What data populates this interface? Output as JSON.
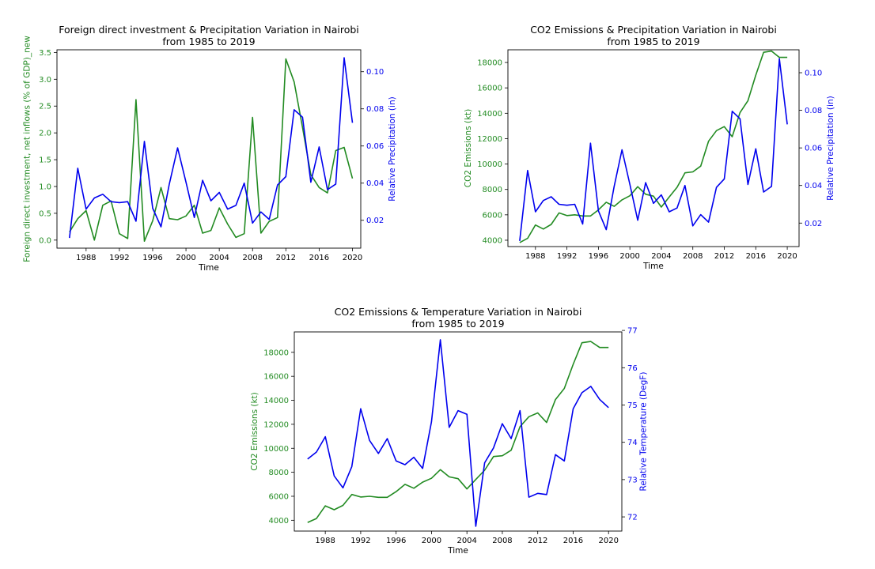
{
  "chart_data": [
    {
      "type": "line",
      "title": "Foreign direct investment & Precipitation Variation in Nairobi\nfrom 1985 to 2019",
      "xlabel": "Time",
      "ylabel_left": "Foreign direct investment, net inflows (% of GDP)_new",
      "ylabel_right": "Relative Precipitation (in)",
      "xlim": [
        1984.5,
        2021.0
      ],
      "ylim_left": [
        -0.15,
        3.55
      ],
      "ylim_right": [
        0.005,
        0.1118
      ],
      "xticks": [
        1988,
        1992,
        1996,
        2000,
        2004,
        2008,
        2012,
        2016,
        2020
      ],
      "xtick_labels": [
        "1988",
        "1992",
        "1996",
        "2000",
        "2004",
        "2008",
        "2012",
        "2016",
        "2020"
      ],
      "yticks_left": [
        0.0,
        0.5,
        1.0,
        1.5,
        2.0,
        2.5,
        3.0,
        3.5
      ],
      "ytick_labels_left": [
        "0.0",
        "0.5",
        "1.0",
        "1.5",
        "2.0",
        "2.5",
        "3.0",
        "3.5"
      ],
      "yticks_right": [
        0.02,
        0.04,
        0.06,
        0.08,
        0.1
      ],
      "ytick_labels_right": [
        "0.02",
        "0.04",
        "0.06",
        "0.08",
        "0.10"
      ],
      "series": [
        {
          "axis": "left",
          "color": "#228B22",
          "x": [
            1986,
            1987,
            1988,
            1989,
            1990,
            1991,
            1992,
            1993,
            1994,
            1995,
            1996,
            1997,
            1998,
            1999,
            2000,
            2001,
            2002,
            2003,
            2004,
            2005,
            2006,
            2007,
            2008,
            2009,
            2010,
            2011,
            2012,
            2013,
            2014,
            2015,
            2016,
            2017,
            2018,
            2019,
            2020
          ],
          "values": [
            0.15,
            0.4,
            0.55,
            0.0,
            0.65,
            0.73,
            0.12,
            0.03,
            2.62,
            -0.02,
            0.36,
            0.98,
            0.4,
            0.38,
            0.45,
            0.65,
            0.13,
            0.18,
            0.6,
            0.3,
            0.05,
            0.12,
            2.29,
            0.13,
            0.35,
            0.42,
            3.38,
            2.95,
            2.1,
            1.22,
            0.98,
            0.88,
            1.67,
            1.73,
            1.15
          ]
        },
        {
          "axis": "right",
          "color": "#0000EE",
          "x": [
            1986,
            1987,
            1988,
            1989,
            1990,
            1991,
            1992,
            1993,
            1994,
            1995,
            1996,
            1997,
            1998,
            1999,
            2000,
            2001,
            2002,
            2003,
            2004,
            2005,
            2006,
            2007,
            2008,
            2009,
            2010,
            2011,
            2012,
            2013,
            2014,
            2015,
            2016,
            2017,
            2018,
            2019,
            2020
          ],
          "values": [
            0.0105,
            0.048,
            0.026,
            0.032,
            0.034,
            0.03,
            0.0295,
            0.03,
            0.0195,
            0.0625,
            0.0265,
            0.0165,
            0.0395,
            0.059,
            0.0405,
            0.0215,
            0.0415,
            0.0305,
            0.035,
            0.026,
            0.028,
            0.04,
            0.0185,
            0.0245,
            0.0205,
            0.039,
            0.0435,
            0.0795,
            0.0755,
            0.0405,
            0.0595,
            0.0365,
            0.0395,
            0.1075,
            0.0725
          ]
        }
      ]
    },
    {
      "type": "line",
      "title": "CO2 Emissions & Precipitation Variation in Nairobi\nfrom 1985 to 2019",
      "xlabel": "Time",
      "ylabel_left": "CO2 Emissions (kt)",
      "ylabel_right": "Relative Precipitation (in)",
      "xlim": [
        1984.5,
        2021.5
      ],
      "ylim_left": [
        3500,
        19000
      ],
      "ylim_right": [
        0.0075,
        0.1122
      ],
      "xticks": [
        1988,
        1992,
        1996,
        2000,
        2004,
        2008,
        2012,
        2016,
        2020
      ],
      "xtick_labels": [
        "1988",
        "1992",
        "1996",
        "2000",
        "2004",
        "2008",
        "2012",
        "2016",
        "2020"
      ],
      "yticks_left": [
        4000,
        6000,
        8000,
        10000,
        12000,
        14000,
        16000,
        18000
      ],
      "ytick_labels_left": [
        "4000",
        "6000",
        "8000",
        "10000",
        "12000",
        "14000",
        "16000",
        "18000"
      ],
      "yticks_right": [
        0.02,
        0.04,
        0.06,
        0.08,
        0.1
      ],
      "ytick_labels_right": [
        "0.02",
        "0.04",
        "0.06",
        "0.08",
        "0.10"
      ],
      "series": [
        {
          "axis": "left",
          "color": "#228B22",
          "x": [
            1986,
            1987,
            1988,
            1989,
            1990,
            1991,
            1992,
            1993,
            1994,
            1995,
            1996,
            1997,
            1998,
            1999,
            2000,
            2001,
            2002,
            2003,
            2004,
            2005,
            2006,
            2007,
            2008,
            2009,
            2010,
            2011,
            2012,
            2013,
            2014,
            2015,
            2016,
            2017,
            2018,
            2019,
            2020
          ],
          "values": [
            3820,
            4150,
            5200,
            4880,
            5240,
            6150,
            5940,
            6000,
            5910,
            5910,
            6390,
            6990,
            6670,
            7180,
            7500,
            8220,
            7620,
            7470,
            6610,
            7400,
            8170,
            9310,
            9380,
            9840,
            11800,
            12630,
            12950,
            12150,
            14060,
            14990,
            17000,
            18800,
            18900,
            18400,
            18400
          ]
        },
        {
          "axis": "right",
          "color": "#0000EE",
          "x": [
            1986,
            1987,
            1988,
            1989,
            1990,
            1991,
            1992,
            1993,
            1994,
            1995,
            1996,
            1997,
            1998,
            1999,
            2000,
            2001,
            2002,
            2003,
            2004,
            2005,
            2006,
            2007,
            2008,
            2009,
            2010,
            2011,
            2012,
            2013,
            2014,
            2015,
            2016,
            2017,
            2018,
            2019,
            2020
          ],
          "values": [
            0.0105,
            0.048,
            0.026,
            0.032,
            0.034,
            0.03,
            0.0295,
            0.03,
            0.0195,
            0.0625,
            0.0265,
            0.0165,
            0.0395,
            0.059,
            0.0405,
            0.0215,
            0.0415,
            0.0305,
            0.035,
            0.026,
            0.028,
            0.04,
            0.0185,
            0.0245,
            0.0205,
            0.039,
            0.0435,
            0.0795,
            0.0755,
            0.0405,
            0.0595,
            0.0365,
            0.0395,
            0.1075,
            0.0725
          ]
        }
      ]
    },
    {
      "type": "line",
      "title": "CO2 Emissions & Temperature Variation in Nairobi\nfrom 1985 to 2019",
      "xlabel": "Time",
      "ylabel_left": "CO2 Emissions (kt)",
      "ylabel_right": "Relative Temperature (DegF)",
      "xlim": [
        1984.5,
        2021.5
      ],
      "ylim_left": [
        3100,
        19700
      ],
      "ylim_right": [
        71.62,
        76.96
      ],
      "xticks": [
        1988,
        1992,
        1996,
        2000,
        2004,
        2008,
        2012,
        2016,
        2020
      ],
      "xtick_labels": [
        "1988",
        "1992",
        "1996",
        "2000",
        "2004",
        "2008",
        "2012",
        "2016",
        "2020"
      ],
      "yticks_left": [
        4000,
        6000,
        8000,
        10000,
        12000,
        14000,
        16000,
        18000
      ],
      "ytick_labels_left": [
        "4000",
        "6000",
        "8000",
        "10000",
        "12000",
        "14000",
        "16000",
        "18000"
      ],
      "yticks_right": [
        72,
        73,
        74,
        75,
        76,
        77
      ],
      "ytick_labels_right": [
        "72",
        "73",
        "74",
        "75",
        "76",
        "77"
      ],
      "series": [
        {
          "axis": "left",
          "color": "#228B22",
          "x": [
            1986,
            1987,
            1988,
            1989,
            1990,
            1991,
            1992,
            1993,
            1994,
            1995,
            1996,
            1997,
            1998,
            1999,
            2000,
            2001,
            2002,
            2003,
            2004,
            2005,
            2006,
            2007,
            2008,
            2009,
            2010,
            2011,
            2012,
            2013,
            2014,
            2015,
            2016,
            2017,
            2018,
            2019,
            2020
          ],
          "values": [
            3820,
            4150,
            5200,
            4880,
            5240,
            6150,
            5940,
            6000,
            5910,
            5910,
            6390,
            6990,
            6670,
            7180,
            7500,
            8220,
            7620,
            7470,
            6610,
            7400,
            8170,
            9310,
            9380,
            9840,
            11800,
            12630,
            12950,
            12150,
            14060,
            14990,
            17000,
            18800,
            18900,
            18400,
            18400
          ]
        },
        {
          "axis": "right",
          "color": "#0000EE",
          "x": [
            1986,
            1987,
            1988,
            1989,
            1990,
            1991,
            1992,
            1993,
            1994,
            1995,
            1996,
            1997,
            1998,
            1999,
            2000,
            2001,
            2002,
            2003,
            2004,
            2005,
            2006,
            2007,
            2008,
            2009,
            2010,
            2011,
            2012,
            2013,
            2014,
            2015,
            2016,
            2017,
            2018,
            2019,
            2020
          ],
          "values": [
            73.55,
            73.74,
            74.15,
            73.1,
            72.78,
            73.35,
            74.9,
            74.05,
            73.7,
            74.1,
            73.5,
            73.4,
            73.6,
            73.3,
            74.55,
            76.75,
            74.4,
            74.85,
            74.75,
            71.75,
            73.45,
            73.85,
            74.5,
            74.1,
            74.85,
            72.53,
            72.63,
            72.6,
            73.67,
            73.5,
            74.9,
            75.33,
            75.5,
            75.15,
            74.93
          ]
        }
      ]
    }
  ]
}
